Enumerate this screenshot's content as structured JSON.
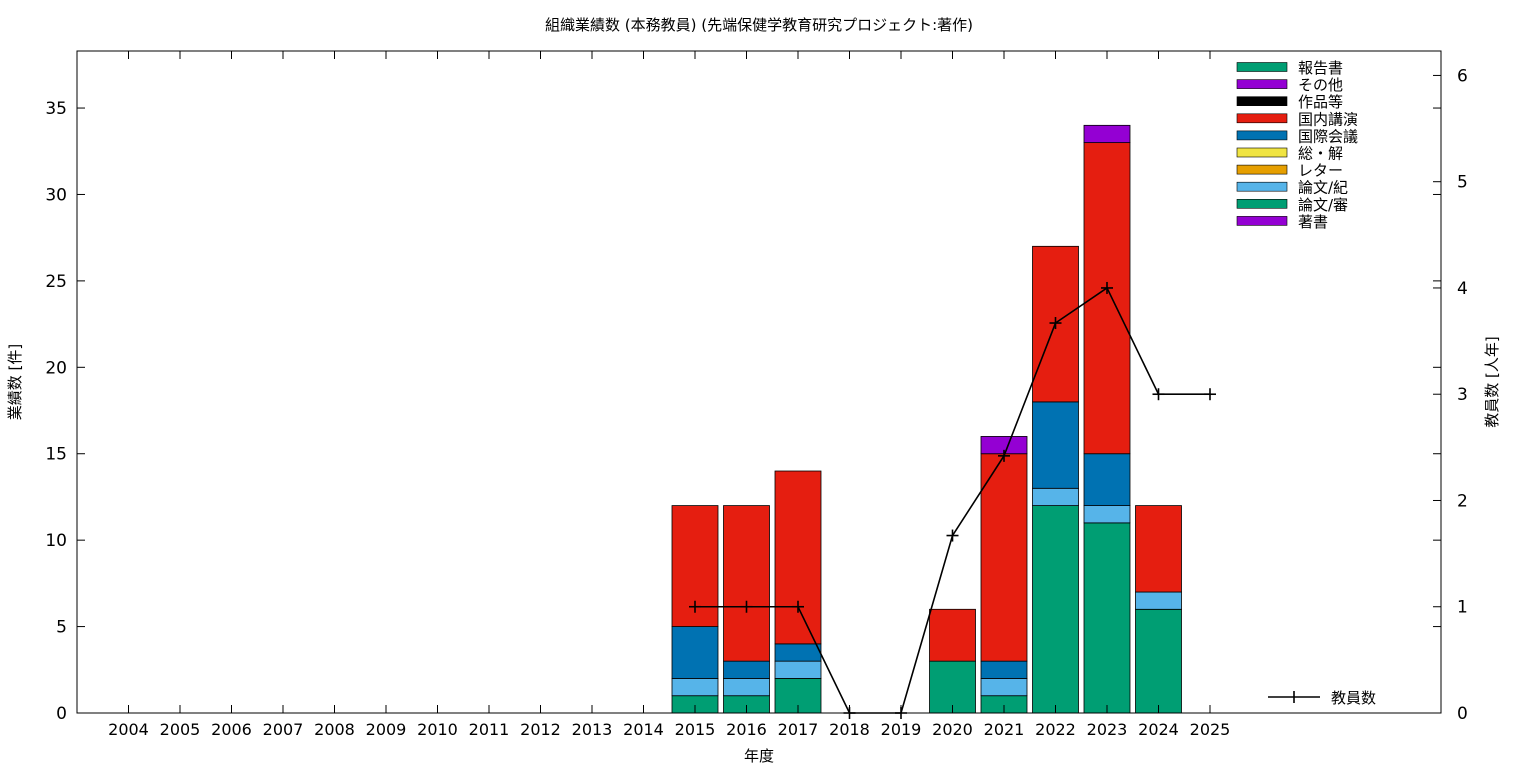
{
  "chart_data": {
    "type": "bar",
    "title": "組織業績数 (本務教員) (先端保健学教育研究プロジェクト:著作)",
    "xlabel": "年度",
    "ylabel": "業績数 [件]",
    "y2label": "教員数 [人年]",
    "ylim": [
      0,
      38.3
    ],
    "y2lim": [
      0,
      6.23
    ],
    "yticks": [
      "0",
      "5",
      "10",
      "15",
      "20",
      "25",
      "30",
      "35"
    ],
    "y2ticks": [
      "0",
      "1",
      "2",
      "3",
      "4",
      "5",
      "6"
    ],
    "categories": [
      "2004",
      "2005",
      "2006",
      "2007",
      "2008",
      "2009",
      "2010",
      "2011",
      "2012",
      "2013",
      "2014",
      "2015",
      "2016",
      "2017",
      "2018",
      "2019",
      "2020",
      "2021",
      "2022",
      "2023",
      "2024",
      "2025"
    ],
    "legend_position": "top-right",
    "series": [
      {
        "name": "著書",
        "color": "#9400d3",
        "values": [
          0,
          0,
          0,
          0,
          0,
          0,
          0,
          0,
          0,
          0,
          0,
          0,
          0,
          0,
          0,
          0,
          0,
          0,
          0,
          0,
          0,
          0
        ]
      },
      {
        "name": "論文/審",
        "color": "#009e73",
        "values": [
          0,
          0,
          0,
          0,
          0,
          0,
          0,
          0,
          0,
          0,
          0,
          1,
          1,
          2,
          0,
          0,
          3,
          1,
          12,
          11,
          6,
          0
        ]
      },
      {
        "name": "論文/紀",
        "color": "#56b4e9",
        "values": [
          0,
          0,
          0,
          0,
          0,
          0,
          0,
          0,
          0,
          0,
          0,
          1,
          1,
          1,
          0,
          0,
          0,
          1,
          1,
          1,
          1,
          0
        ]
      },
      {
        "name": "レター",
        "color": "#e69f00",
        "values": [
          0,
          0,
          0,
          0,
          0,
          0,
          0,
          0,
          0,
          0,
          0,
          0,
          0,
          0,
          0,
          0,
          0,
          0,
          0,
          0,
          0,
          0
        ]
      },
      {
        "name": "総・解",
        "color": "#f0e442",
        "values": [
          0,
          0,
          0,
          0,
          0,
          0,
          0,
          0,
          0,
          0,
          0,
          0,
          0,
          0,
          0,
          0,
          0,
          0,
          0,
          0,
          0,
          0
        ]
      },
      {
        "name": "国際会議",
        "color": "#0072b2",
        "values": [
          0,
          0,
          0,
          0,
          0,
          0,
          0,
          0,
          0,
          0,
          0,
          3,
          1,
          1,
          0,
          0,
          0,
          1,
          5,
          3,
          0,
          0
        ]
      },
      {
        "name": "国内講演",
        "color": "#e51e10",
        "values": [
          0,
          0,
          0,
          0,
          0,
          0,
          0,
          0,
          0,
          0,
          0,
          7,
          9,
          10,
          0,
          0,
          3,
          12,
          9,
          18,
          5,
          0
        ]
      },
      {
        "name": "作品等",
        "color": "#000000",
        "values": [
          0,
          0,
          0,
          0,
          0,
          0,
          0,
          0,
          0,
          0,
          0,
          0,
          0,
          0,
          0,
          0,
          0,
          0,
          0,
          0,
          0,
          0
        ]
      },
      {
        "name": "その他",
        "color": "#9400d3",
        "values": [
          0,
          0,
          0,
          0,
          0,
          0,
          0,
          0,
          0,
          0,
          0,
          0,
          0,
          0,
          0,
          0,
          0,
          1,
          0,
          1,
          0,
          0
        ]
      },
      {
        "name": "報告書",
        "color": "#009e73",
        "values": [
          0,
          0,
          0,
          0,
          0,
          0,
          0,
          0,
          0,
          0,
          0,
          0,
          0,
          0,
          0,
          0,
          0,
          0,
          0,
          0,
          0,
          0
        ]
      }
    ],
    "line_series": {
      "name": "教員数",
      "color": "#000000",
      "axis": "right",
      "x": [
        "2015",
        "2016",
        "2017",
        "2018",
        "2019",
        "2020",
        "2021",
        "2022",
        "2023",
        "2024",
        "2025"
      ],
      "values": [
        1,
        1,
        1,
        0,
        0,
        1.67,
        2.42,
        3.67,
        4,
        3,
        3
      ]
    }
  }
}
